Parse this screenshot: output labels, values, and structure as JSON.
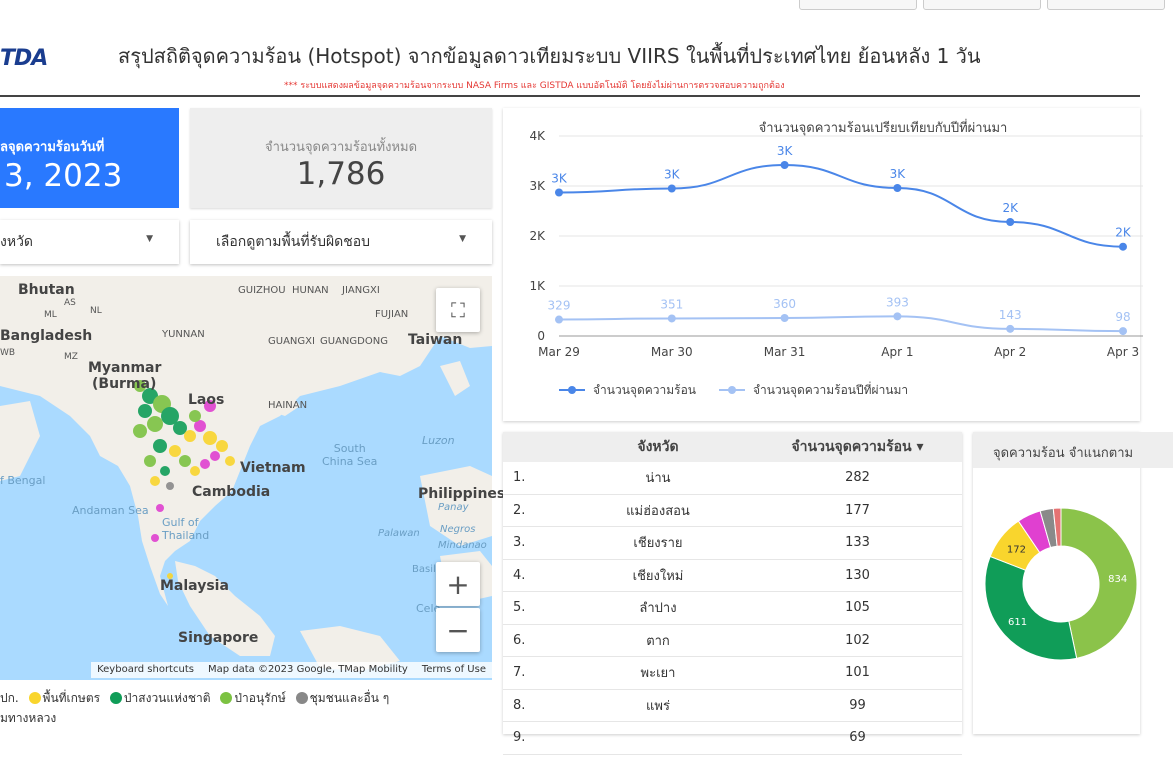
{
  "header": {
    "logo": "TDA",
    "title": "สรุปสถิติจุดความร้อน (Hotspot) จากข้อมูลดาวเทียมระบบ VIIRS  ในพื้นที่ประเทศไทย ย้อนหลัง 1 วัน",
    "subtitle": "*** ระบบแสดงผลข้อมูลจุดความร้อนจากระบบ NASA Firms และ GISTDA แบบอัตโนมัติ โดยยังไม่ผ่านการตรวจสอบความถูกต้อง"
  },
  "scorecards": {
    "date_label": "ลจุดความร้อนวันที่",
    "date_value": "3, 2023",
    "total_label": "จำนวนจุดความร้อนทั้งหมด",
    "total_value": "1,786"
  },
  "filters": {
    "province_label": "งหวัด",
    "area_label": "เลือกดูตามพื้นที่รับผิดชอบ"
  },
  "map": {
    "labels": {
      "bhutan": "Bhutan",
      "as": "AS",
      "ml": "ML",
      "nl": "NL",
      "bangladesh": "Bangladesh",
      "wb": "WB",
      "mz": "MZ",
      "myanmar": "Myanmar",
      "burma": "(Burma)",
      "guizhou": "GUIZHOU",
      "hunan": "HUNAN",
      "jiangxi": "JIANGXI",
      "fujian": "FUJIAN",
      "yunnan": "YUNNAN",
      "guangxi": "GUANGXI",
      "guangdong": "GUANGDONG",
      "taiwan": "Taiwan",
      "hainan": "HAINAN",
      "laos": "Laos",
      "vietnam": "Vietnam",
      "cambodia": "Cambodia",
      "south_china_sea": "South\nChina Sea",
      "luzon": "Luzon",
      "philippines": "Philippines",
      "panay": "Panay",
      "negros": "Negros",
      "mindanao": "Mindanao",
      "palawan": "Palawan",
      "basil": "Basil",
      "celebes": "Cele",
      "bay_of_bengal": "f Bengal",
      "andaman_sea": "Andaman Sea",
      "gulf_thailand": "Gulf of\nThailand",
      "malaysia": "Malaysia",
      "singapore": "Singapore"
    },
    "attribution": [
      "Keyboard shortcuts",
      "Map data ©2023 Google, TMap Mobility",
      "Terms of Use"
    ],
    "legend": [
      {
        "label": "ปก.",
        "color": ""
      },
      {
        "label": "พื้นที่เกษตร",
        "color": "#f9d52d"
      },
      {
        "label": "ป่าสงวนแห่งชาติ",
        "color": "#109d58"
      },
      {
        "label": "ป่าอนุรักษ์",
        "color": "#7cc242"
      },
      {
        "label": "ชุมชนและอื่น ๆ",
        "color": "#888888"
      }
    ],
    "legend_line2": "มทางหลวง"
  },
  "chart_data": [
    {
      "type": "line",
      "title": "จำนวนจุดความร้อนเปรียบเทียบกับปีที่ผ่านมา",
      "categories": [
        "Mar 29",
        "Mar 30",
        "Mar 31",
        "Apr 1",
        "Apr 2",
        "Apr 3"
      ],
      "ylim": [
        0,
        4000
      ],
      "yticks": [
        "0",
        "1K",
        "2K",
        "3K",
        "4K"
      ],
      "grid": true,
      "legend_position": "bottom-left",
      "series": [
        {
          "name": "จำนวนจุดความร้อน",
          "values": [
            2870,
            2950,
            3420,
            2960,
            2280,
            1786
          ],
          "labels": [
            "3K",
            "3K",
            "3K",
            "3K",
            "2K",
            "2K"
          ],
          "color": "#4a86e8"
        },
        {
          "name": "จำนวนจุดความร้อนปีที่ผ่านมา",
          "values": [
            329,
            351,
            360,
            393,
            143,
            98
          ],
          "labels": [
            "329",
            "351",
            "360",
            "393",
            "143",
            "98"
          ],
          "color": "#a4c2f4"
        }
      ]
    },
    {
      "type": "pie",
      "title": "จุดความร้อน จำแนกตาม",
      "slices": [
        {
          "value": 834,
          "label": "834",
          "color": "#8bc34a"
        },
        {
          "value": 611,
          "label": "611",
          "color": "#109d58"
        },
        {
          "value": 172,
          "label": "172",
          "color": "#f9d52d"
        },
        {
          "value": 90,
          "label": "",
          "color": "#e040d0"
        },
        {
          "value": 50,
          "label": "",
          "color": "#8a8a8a"
        },
        {
          "value": 29,
          "label": "",
          "color": "#e57373"
        }
      ]
    }
  ],
  "table": {
    "headers": [
      "จังหวัด",
      "จำนวนจุดความร้อน ▾"
    ],
    "rows": [
      [
        "1.",
        "น่าน",
        "282"
      ],
      [
        "2.",
        "แม่ฮ่องสอน",
        "177"
      ],
      [
        "3.",
        "เชียงราย",
        "133"
      ],
      [
        "4.",
        "เชียงใหม่",
        "130"
      ],
      [
        "5.",
        "ลำปาง",
        "105"
      ],
      [
        "6.",
        "ตาก",
        "102"
      ],
      [
        "7.",
        "พะเยา",
        "101"
      ],
      [
        "8.",
        "แพร่",
        "99"
      ],
      [
        "9.",
        "",
        "69"
      ]
    ]
  }
}
